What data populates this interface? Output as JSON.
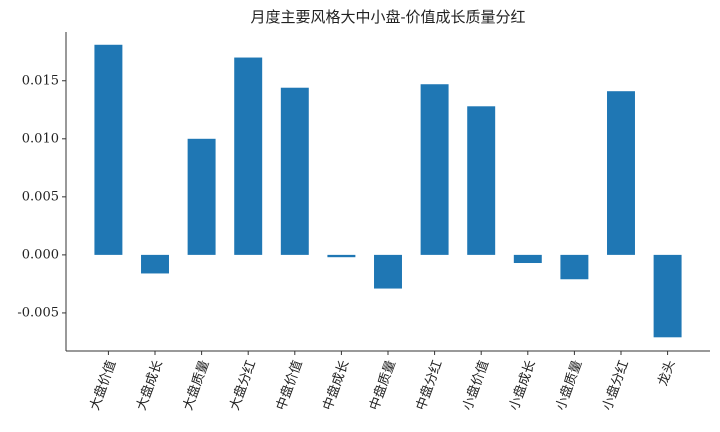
{
  "chart_data": {
    "type": "bar",
    "title": "月度主要风格大中小盘-价值成长质量分红",
    "categories": [
      "大盘价值",
      "大盘成长",
      "大盘质量",
      "大盘分红",
      "中盘价值",
      "中盘成长",
      "中盘质量",
      "中盘分红",
      "小盘价值",
      "小盘成长",
      "小盘质量",
      "小盘分红",
      "龙头"
    ],
    "values": [
      0.0181,
      -0.0016,
      0.01,
      0.017,
      0.0144,
      -0.0002,
      -0.0029,
      0.0147,
      0.0128,
      -0.0007,
      -0.0021,
      0.0141,
      -0.0071
    ],
    "color": "#1f77b4",
    "ylim": [
      -0.00828,
      0.0192
    ],
    "yticks": [
      {
        "value": -0.005,
        "label": "-0.005"
      },
      {
        "value": 0,
        "label": "0.000"
      },
      {
        "value": 0.005,
        "label": "0.005"
      },
      {
        "value": 0.01,
        "label": "0.010"
      },
      {
        "value": 0.015,
        "label": "0.015"
      }
    ],
    "grid": false
  }
}
